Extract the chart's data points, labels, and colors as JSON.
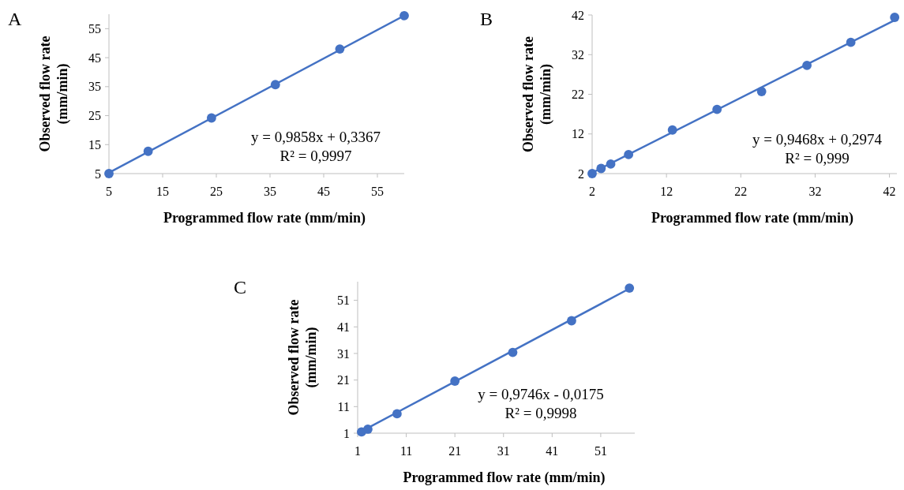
{
  "chart_data": [
    {
      "type": "scatter",
      "title": "A",
      "xlabel": "Programmed flow rate (mm/min)",
      "ylabel": "Observed flow rate (mm/min)",
      "xlim": [
        5,
        60
      ],
      "ylim": [
        5,
        60
      ],
      "xticks": [
        5,
        15,
        25,
        35,
        45,
        55
      ],
      "yticks": [
        5,
        15,
        25,
        35,
        45,
        55
      ],
      "marker": "circle",
      "annotations": [
        "y = 0,9858x + 0,3367",
        "R² = 0,9997"
      ],
      "series": [
        {
          "type": "scatter",
          "color": "#4472c4",
          "x": [
            5,
            12.3,
            24.1,
            36,
            48,
            60
          ],
          "values": [
            5,
            12.7,
            24.2,
            35.7,
            48,
            59.5
          ]
        },
        {
          "type": "line",
          "color": "#4472c4",
          "marker": "none",
          "x": [
            5,
            60
          ],
          "values": [
            5.3,
            59.5
          ]
        }
      ]
    },
    {
      "type": "scatter",
      "title": "B",
      "xlabel": "Programmed flow rate (mm/min)",
      "ylabel": "Observed flow rate (mm/min)",
      "xlim": [
        2,
        43
      ],
      "ylim": [
        2,
        42
      ],
      "xticks": [
        2,
        12,
        22,
        32,
        42
      ],
      "yticks": [
        2,
        12,
        22,
        32,
        42
      ],
      "marker": "circle",
      "annotations": [
        "y = 0,9468x + 0,2974",
        "R² = 0,999"
      ],
      "series": [
        {
          "type": "scatter",
          "color": "#4472c4",
          "x": [
            2,
            3.2,
            4.5,
            6.9,
            12.8,
            18.8,
            24.8,
            30.9,
            36.8,
            42.7
          ],
          "values": [
            2,
            3.3,
            4.4,
            6.8,
            13,
            18.2,
            22.7,
            29.3,
            35.1,
            41.4
          ]
        },
        {
          "type": "line",
          "color": "#4472c4",
          "marker": "none",
          "x": [
            2,
            42.7
          ],
          "values": [
            2.2,
            40.7
          ]
        }
      ]
    },
    {
      "type": "scatter",
      "title": "C",
      "xlabel": "Programmed flow rate (mm/min)",
      "ylabel": "Observed flow rate (mm/min)",
      "xlim": [
        1,
        58
      ],
      "ylim": [
        1,
        58
      ],
      "xticks": [
        1,
        11,
        21,
        31,
        41,
        51
      ],
      "yticks": [
        1,
        11,
        21,
        31,
        41,
        51
      ],
      "marker": "circle",
      "annotations": [
        "y = 0,9746x - 0,0175",
        "R² = 0,9998"
      ],
      "series": [
        {
          "type": "scatter",
          "color": "#4472c4",
          "x": [
            1.8,
            3.1,
            9.1,
            21,
            32.9,
            45,
            56.9
          ],
          "values": [
            1.5,
            2.5,
            8.3,
            20.6,
            31.4,
            43.3,
            55.6
          ]
        },
        {
          "type": "line",
          "color": "#4472c4",
          "marker": "none",
          "x": [
            1.8,
            56.9
          ],
          "values": [
            1.7,
            55.4
          ]
        }
      ]
    }
  ]
}
